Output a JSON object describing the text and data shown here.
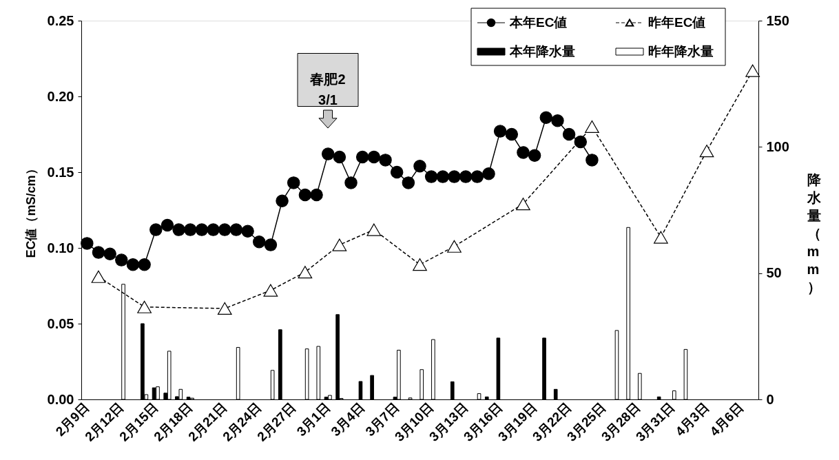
{
  "chart_data": {
    "type": "line",
    "ylabel": "EC値（mS/cm）",
    "y2label": "降水量（mm）",
    "categories": [
      "2月9日",
      null,
      null,
      "2月12日",
      null,
      null,
      "2月15日",
      null,
      null,
      "2月18日",
      null,
      null,
      "2月21日",
      null,
      null,
      "2月24日",
      null,
      null,
      "2月27日",
      null,
      null,
      "3月1日",
      null,
      null,
      "3月4日",
      null,
      null,
      "3月7日",
      null,
      null,
      "3月10日",
      null,
      null,
      "3月13日",
      null,
      null,
      "3月16日",
      null,
      null,
      "3月19日",
      null,
      null,
      "3月22日",
      null,
      null,
      "3月25日",
      null,
      null,
      "3月28日",
      null,
      null,
      "3月31日",
      null,
      null,
      "4月3日",
      null,
      null,
      "4月6日",
      null
    ],
    "series": [
      {
        "name": "本年EC値",
        "color": "#000000",
        "marker": "circle",
        "line_style": "solid",
        "values": [
          0.103,
          0.097,
          0.096,
          0.092,
          0.089,
          0.089,
          0.112,
          0.115,
          0.112,
          0.112,
          0.112,
          0.112,
          0.112,
          0.112,
          0.111,
          0.104,
          0.102,
          0.131,
          0.143,
          0.135,
          0.135,
          0.162,
          0.16,
          0.143,
          0.16,
          0.16,
          0.158,
          0.15,
          0.143,
          0.154,
          0.147,
          0.147,
          0.147,
          0.147,
          0.147,
          0.149,
          0.177,
          0.175,
          0.163,
          0.161,
          0.186,
          0.184,
          0.175,
          0.17,
          0.158,
          null,
          null,
          null,
          null,
          null,
          null,
          null,
          null,
          null,
          null,
          null,
          null,
          null,
          null
        ]
      },
      {
        "name": "昨年EC値",
        "color": "#000000",
        "marker": "triangle",
        "line_style": "dashed",
        "values": [
          null,
          0.081,
          null,
          null,
          null,
          0.061,
          null,
          null,
          null,
          null,
          null,
          null,
          0.06,
          null,
          null,
          null,
          0.072,
          null,
          null,
          0.084,
          null,
          null,
          0.102,
          null,
          null,
          0.112,
          null,
          null,
          null,
          0.089,
          null,
          null,
          0.101,
          null,
          null,
          null,
          null,
          null,
          0.129,
          null,
          null,
          null,
          null,
          null,
          0.18,
          null,
          null,
          null,
          null,
          null,
          0.107,
          null,
          null,
          null,
          0.164,
          null,
          null,
          null,
          0.217
        ]
      },
      {
        "name": "本年降水量",
        "type": "bar",
        "axis": "y2",
        "color": "#000000",
        "values": [
          null,
          null,
          null,
          null,
          null,
          30.0,
          4.6,
          2.5,
          1.1,
          0.9,
          null,
          null,
          null,
          null,
          null,
          null,
          null,
          27.6,
          null,
          null,
          null,
          0.9,
          33.6,
          null,
          7.1,
          9.5,
          null,
          0.9,
          null,
          null,
          null,
          null,
          7.0,
          null,
          null,
          1.0,
          24.3,
          null,
          null,
          null,
          24.3,
          4.0,
          null,
          null,
          null,
          null,
          null,
          null,
          null,
          null,
          1.0,
          null,
          null,
          null,
          null,
          null,
          null,
          null,
          null
        ]
      },
      {
        "name": "昨年降水量",
        "type": "bar",
        "axis": "y2",
        "color": "#ffffff",
        "values": [
          null,
          null,
          null,
          45.6,
          null,
          1.9,
          5.0,
          19.1,
          4.0,
          0.5,
          null,
          null,
          null,
          20.6,
          null,
          null,
          11.5,
          null,
          null,
          20.0,
          21.0,
          1.6,
          0.4,
          null,
          null,
          null,
          null,
          19.5,
          0.6,
          11.8,
          23.7,
          null,
          null,
          null,
          2.3,
          null,
          null,
          null,
          null,
          null,
          null,
          null,
          null,
          null,
          null,
          null,
          27.3,
          68.1,
          10.3,
          null,
          null,
          3.4,
          19.8,
          null,
          null,
          null,
          null,
          null,
          null
        ]
      }
    ],
    "ylim": [
      0,
      0.25
    ],
    "yticks": [
      {
        "value": 0,
        "label": "0.00"
      },
      {
        "value": 0.05,
        "label": "0.05"
      },
      {
        "value": 0.1,
        "label": "0.10"
      },
      {
        "value": 0.15,
        "label": "0.15"
      },
      {
        "value": 0.2,
        "label": "0.20"
      },
      {
        "value": 0.25,
        "label": "0.25"
      }
    ],
    "y2lim": [
      0,
      150
    ],
    "y2ticks": [
      0,
      50,
      100,
      150
    ],
    "annotations": [
      "春肥2\n3/1"
    ],
    "legend": "top right",
    "grid": false
  }
}
